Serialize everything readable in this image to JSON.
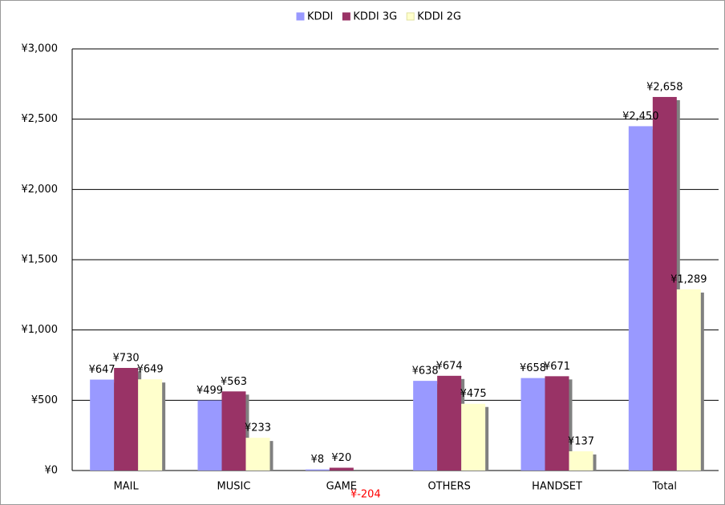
{
  "chart_data": {
    "type": "bar",
    "categories": [
      "MAIL",
      "MUSIC",
      "GAME",
      "OTHERS",
      "HANDSET",
      "Total"
    ],
    "series": [
      {
        "name": "KDDI",
        "color": "#9999ff",
        "values": [
          647,
          499,
          8,
          638,
          658,
          2450
        ],
        "value_labels": [
          "¥647",
          "¥499",
          "¥8",
          "¥638",
          "¥658",
          "¥2,450"
        ]
      },
      {
        "name": "KDDI 3G",
        "color": "#993366",
        "values": [
          730,
          563,
          20,
          674,
          671,
          2658
        ],
        "value_labels": [
          "¥730",
          "¥563",
          "¥20",
          "¥674",
          "¥671",
          "¥2,658"
        ]
      },
      {
        "name": "KDDI 2G",
        "color": "#ffffcc",
        "values": [
          649,
          233,
          -204,
          475,
          137,
          1289
        ],
        "value_labels": [
          "¥649",
          "¥233",
          "¥-204",
          "¥475",
          "¥137",
          "¥1,289"
        ]
      }
    ],
    "ylim": [
      0,
      3000
    ],
    "yticks": [
      {
        "value": 0,
        "label": "¥0"
      },
      {
        "value": 500,
        "label": "¥500"
      },
      {
        "value": 1000,
        "label": "¥1,000"
      },
      {
        "value": 1500,
        "label": "¥1,500"
      },
      {
        "value": 2000,
        "label": "¥2,000"
      },
      {
        "value": 2500,
        "label": "¥2,500"
      },
      {
        "value": 3000,
        "label": "¥3,000"
      }
    ],
    "grid": true,
    "legend": "top"
  }
}
